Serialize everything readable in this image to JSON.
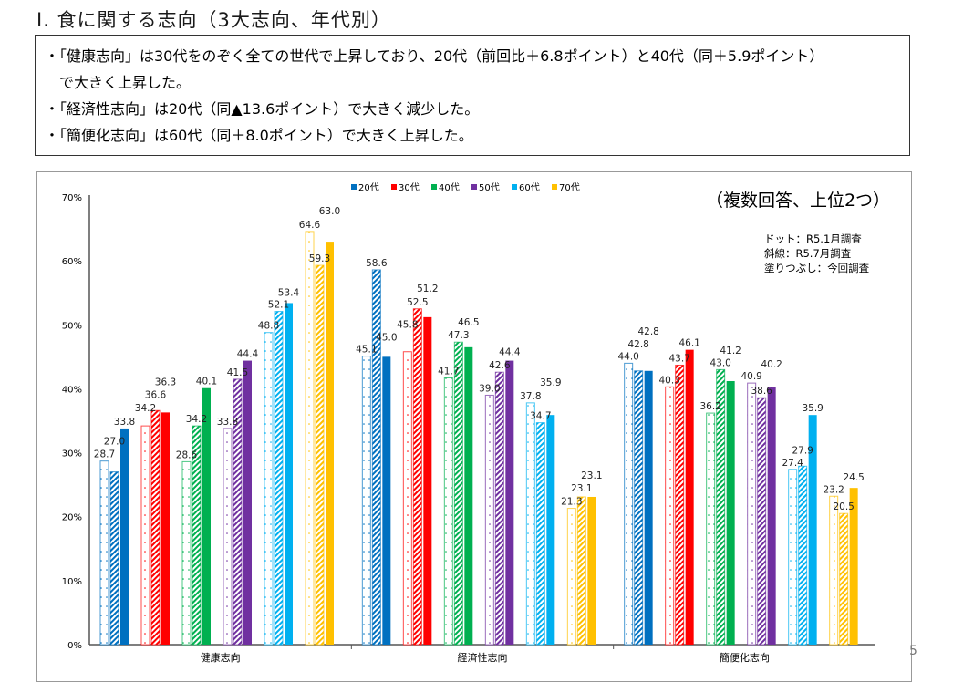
{
  "title": "Ⅰ. 食に関する志向（3大志向、年代別）",
  "summary": [
    "・「健康志向」は30代をのぞく全ての世代で上昇しており、20代（前回比＋6.8ポイント）と40代（同＋5.9ポイント）",
    "　で大きく上昇した。",
    "・「経済性志向」は20代（同▲13.6ポイント）で大きく減少した。",
    "・「簡便化志向」は60代（同＋8.0ポイント）で大きく上昇した。"
  ],
  "page_number": "5",
  "chart_data": {
    "type": "bar",
    "subtitle": "（複数回答、上位2つ）",
    "notes": [
      "ドット：R5.1月調査",
      "斜線：R5.7月調査",
      "塗りつぶし：今回調査"
    ],
    "categories": [
      "健康志向",
      "経済性志向",
      "簡便化志向"
    ],
    "ylim": [
      0,
      70
    ],
    "yticks": [
      "0%",
      "10%",
      "20%",
      "30%",
      "40%",
      "50%",
      "60%",
      "70%"
    ],
    "surveys": [
      "R5.1月調査",
      "R5.7月調査",
      "今回調査"
    ],
    "legend_position": "top",
    "series": [
      {
        "name": "20代",
        "color": "#0070C0",
        "values": [
          [
            28.7,
            27.0,
            33.8
          ],
          [
            45.1,
            58.6,
            45.0
          ],
          [
            44.0,
            42.8,
            42.8
          ]
        ]
      },
      {
        "name": "30代",
        "color": "#FF0000",
        "values": [
          [
            34.2,
            36.6,
            36.3
          ],
          [
            45.8,
            52.5,
            51.2
          ],
          [
            40.3,
            43.7,
            46.1
          ]
        ]
      },
      {
        "name": "40代",
        "color": "#00B050",
        "values": [
          [
            28.6,
            34.2,
            40.1
          ],
          [
            41.7,
            47.3,
            46.5
          ],
          [
            36.2,
            43.0,
            41.2
          ]
        ]
      },
      {
        "name": "50代",
        "color": "#7030A0",
        "values": [
          [
            33.8,
            41.5,
            44.4
          ],
          [
            39.0,
            42.6,
            44.4
          ],
          [
            40.9,
            38.6,
            40.2
          ]
        ]
      },
      {
        "name": "60代",
        "color": "#00B0F0",
        "values": [
          [
            48.8,
            52.1,
            53.4
          ],
          [
            37.8,
            34.7,
            35.9
          ],
          [
            27.4,
            27.9,
            35.9
          ]
        ]
      },
      {
        "name": "70代",
        "color": "#FFC000",
        "values": [
          [
            64.6,
            59.3,
            63.0
          ],
          [
            21.3,
            23.1,
            23.1
          ],
          [
            23.2,
            20.5,
            24.5
          ]
        ]
      }
    ]
  }
}
